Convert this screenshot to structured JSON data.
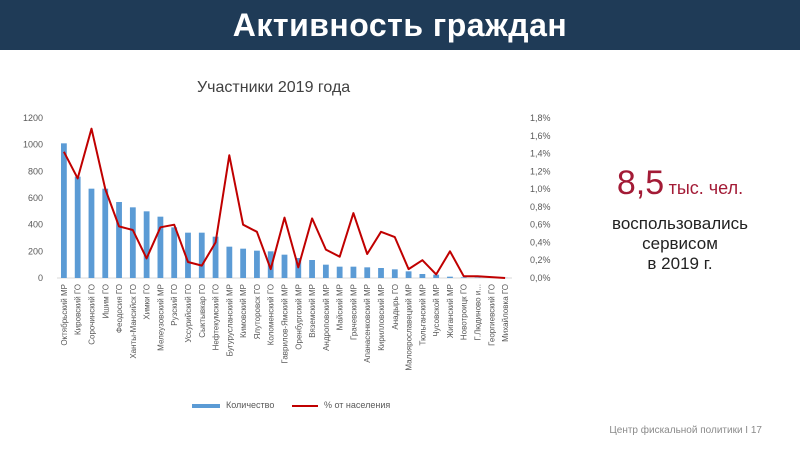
{
  "header": {
    "title": "Активность граждан"
  },
  "stat": {
    "value": "8,5",
    "unit": "тыс. чел.",
    "desc_lines": [
      "воспользовались",
      "сервисом",
      "в 2019 г."
    ]
  },
  "footer": {
    "text": "Центр фискальной политики I 17"
  },
  "colors": {
    "header_bg": "#1f3b57",
    "accent": "#a31b36",
    "bar": "#5b9bd5",
    "line": "#c00000"
  },
  "chart_data": {
    "type": "bar",
    "title": "Участники 2019 года",
    "categories": [
      "Октябрьский МР",
      "Кировский ГО",
      "Сорочинский ГО",
      "Ишим ГО",
      "Феодосия ГО",
      "Ханты-Мансийск ГО",
      "Химки ГО",
      "Мелеузовский МР",
      "Рузский ГО",
      "Уссурийский ГО",
      "Сыктывкар ГО",
      "Нефтекумский ГО",
      "Бугурусланский МР",
      "Кимовский МР",
      "Ялуторовск ГО",
      "Коломенский ГО",
      "Гаврилов-Ямский МР",
      "Оренбургский МР",
      "Вяземский МР",
      "Андроповский МР",
      "Майский МР",
      "Грачевский МР",
      "Апанасенковский МР",
      "Кирилловский МР",
      "Анадырь ГО",
      "Малоярославецкий МР",
      "Тюльганский МР",
      "Чусовской МР",
      "Жиганский МР",
      "Новотроицк ГО",
      "Г.Людиново и...",
      "Георгиевский ГО",
      "Михайловка ГО"
    ],
    "series": [
      {
        "name": "Количество",
        "type": "bar",
        "axis": "left",
        "values": [
          1010,
          760,
          670,
          670,
          570,
          530,
          500,
          460,
          380,
          340,
          340,
          310,
          235,
          220,
          205,
          200,
          175,
          150,
          135,
          100,
          85,
          85,
          80,
          75,
          65,
          50,
          30,
          25,
          10,
          5,
          3,
          2,
          1
        ]
      },
      {
        "name": "% от населения",
        "type": "line",
        "axis": "right",
        "values": [
          1.42,
          1.12,
          1.68,
          1.0,
          0.58,
          0.54,
          0.22,
          0.57,
          0.6,
          0.18,
          0.14,
          0.4,
          1.38,
          0.6,
          0.52,
          0.1,
          0.68,
          0.12,
          0.67,
          0.32,
          0.24,
          0.73,
          0.27,
          0.52,
          0.46,
          0.1,
          0.2,
          0.04,
          0.3,
          0.02,
          0.02,
          0.01,
          0.0
        ]
      }
    ],
    "y_left": {
      "min": 0,
      "max": 1200,
      "ticks": [
        "0",
        "200",
        "400",
        "600",
        "800",
        "1000",
        "1200"
      ]
    },
    "y_right": {
      "min": 0,
      "max": 1.8,
      "ticks": [
        "0,0%",
        "0,2%",
        "0,4%",
        "0,6%",
        "0,8%",
        "1,0%",
        "1,2%",
        "1,4%",
        "1,6%",
        "1,8%"
      ]
    },
    "legend": [
      "Количество",
      "% от населения"
    ],
    "legend_position": "bottom",
    "grid": false
  }
}
